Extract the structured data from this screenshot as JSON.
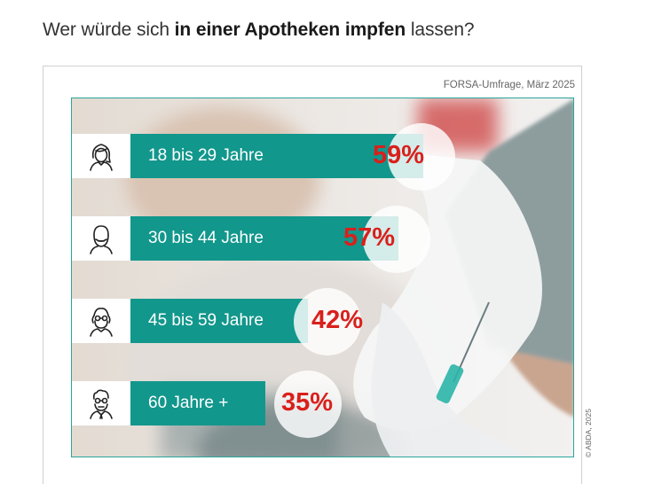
{
  "title": {
    "part1": "Wer würde sich ",
    "part2": "in einer Apotheken impfen",
    "part3": " lassen?"
  },
  "source": "FORSA-Umfrage, März 2025",
  "copyright": "© ABDA, 2025",
  "colors": {
    "bar": "#12978c",
    "percent": "#d9201c",
    "frame": "#2aa59b"
  },
  "chart_data": {
    "type": "bar",
    "orientation": "horizontal",
    "categories": [
      "18 bis 29 Jahre",
      "30 bis 44 Jahre",
      "45 bis 59 Jahre",
      "60 Jahre +"
    ],
    "values": [
      59,
      57,
      42,
      35
    ],
    "value_labels": [
      "59%",
      "57%",
      "42%",
      "35%"
    ],
    "icons": [
      "young-woman-icon",
      "bearded-man-icon",
      "woman-with-glasses-icon",
      "old-man-icon"
    ]
  }
}
